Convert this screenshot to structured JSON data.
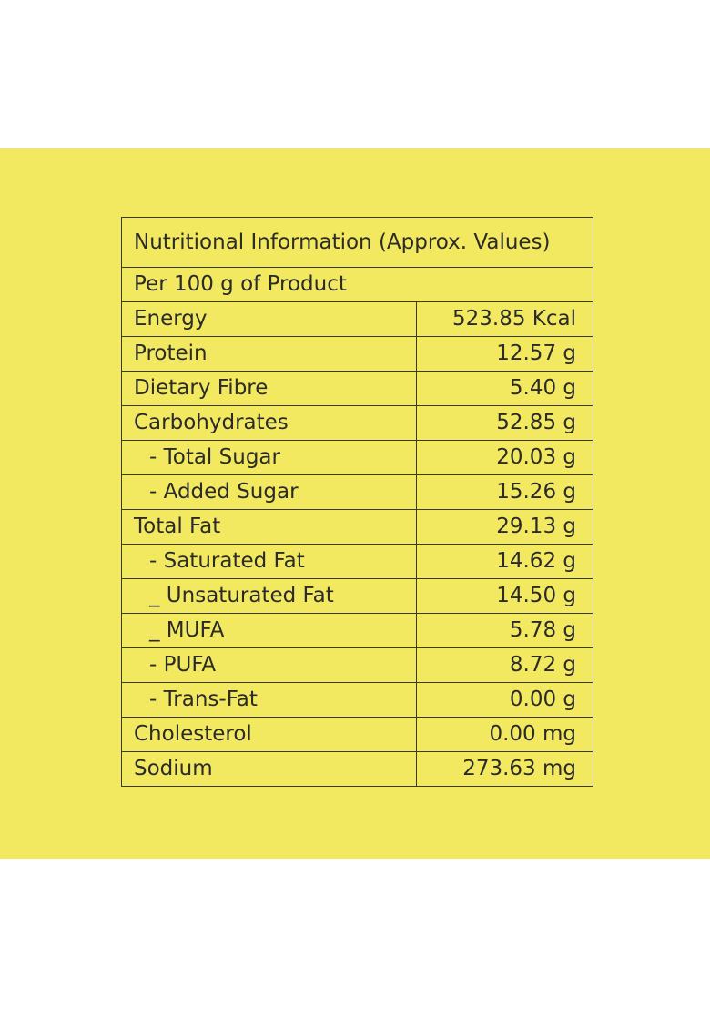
{
  "label": {
    "title": "Nutritional Information (Approx. Values)",
    "serving": "Per 100 g of Product",
    "rows": [
      {
        "name": "Energy",
        "value": "523.85 Kcal",
        "sub": false
      },
      {
        "name": "Protein",
        "value": "12.57 g",
        "sub": false
      },
      {
        "name": "Dietary Fibre",
        "value": "5.40 g",
        "sub": false
      },
      {
        "name": "Carbohydrates",
        "value": "52.85 g",
        "sub": false
      },
      {
        "name": "- Total Sugar",
        "value": "20.03 g",
        "sub": true
      },
      {
        "name": "- Added Sugar",
        "value": "15.26 g",
        "sub": true
      },
      {
        "name": "Total Fat",
        "value": "29.13 g",
        "sub": false
      },
      {
        "name": "- Saturated Fat",
        "value": "14.62 g",
        "sub": true
      },
      {
        "name": "_ Unsaturated Fat",
        "value": "14.50 g",
        "sub": true
      },
      {
        "name": "_ MUFA",
        "value": "5.78 g",
        "sub": true
      },
      {
        "name": "- PUFA",
        "value": "8.72 g",
        "sub": true
      },
      {
        "name": "- Trans-Fat",
        "value": "0.00 g",
        "sub": true
      },
      {
        "name": "Cholesterol",
        "value": "0.00 mg",
        "sub": false
      },
      {
        "name": "Sodium",
        "value": "273.63 mg",
        "sub": false
      }
    ]
  },
  "colors": {
    "panel_background": "#f3e960",
    "page_background": "#ffffff",
    "text": "#2b2b2b",
    "border": "#3a3a2a"
  }
}
